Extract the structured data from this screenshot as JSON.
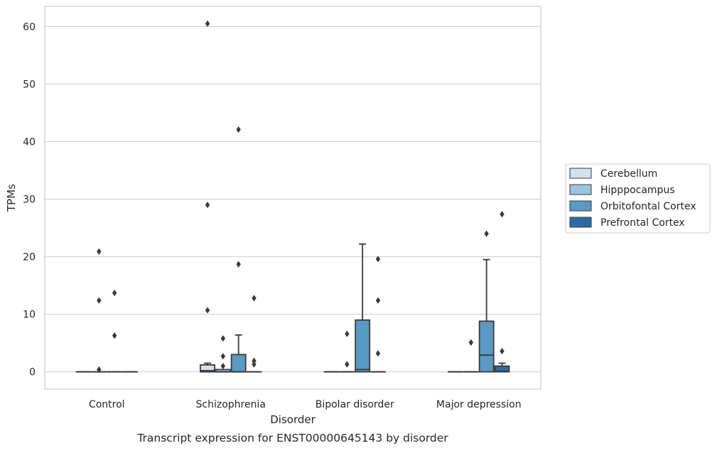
{
  "chart_data": {
    "type": "box",
    "title": "",
    "caption": "Transcript expression for ENST00000645143 by disorder",
    "xlabel": "Disorder",
    "ylabel": "TPMs",
    "ylim": [
      -3,
      63.5
    ],
    "yticks": [
      0,
      10,
      20,
      30,
      40,
      50,
      60
    ],
    "grid": true,
    "legend_position": "right",
    "categories": [
      "Control",
      "Schizophrenia",
      "Bipolar disorder",
      "Major depression"
    ],
    "series": [
      {
        "name": "Cerebellum",
        "color": "#d4e2ef",
        "boxes": [
          {
            "category": "Control",
            "min": 0,
            "q1": 0,
            "median": 0,
            "q3": 0,
            "max": 0,
            "outliers": []
          },
          {
            "category": "Schizophrenia",
            "min": 0,
            "q1": 0,
            "median": 0.2,
            "q3": 1.2,
            "max": 1.5,
            "outliers": [
              10.7,
              29,
              60.5
            ]
          },
          {
            "category": "Bipolar disorder",
            "min": 0,
            "q1": 0,
            "median": 0,
            "q3": 0,
            "max": 0,
            "outliers": []
          },
          {
            "category": "Major depression",
            "min": 0,
            "q1": 0,
            "median": 0,
            "q3": 0,
            "max": 0,
            "outliers": []
          }
        ]
      },
      {
        "name": "Hipppocampus",
        "color": "#9cc3df",
        "boxes": [
          {
            "category": "Control",
            "min": 0,
            "q1": 0,
            "median": 0,
            "q3": 0,
            "max": 0,
            "outliers": [
              0.4,
              12.4,
              20.9
            ]
          },
          {
            "category": "Schizophrenia",
            "min": 0,
            "q1": 0,
            "median": 0,
            "q3": 0.4,
            "max": 0.4,
            "outliers": [
              1.0,
              2.7,
              5.8
            ]
          },
          {
            "category": "Bipolar disorder",
            "min": 0,
            "q1": 0,
            "median": 0,
            "q3": 0,
            "max": 0,
            "outliers": [
              1.3,
              6.6
            ]
          },
          {
            "category": "Major depression",
            "min": 0,
            "q1": 0,
            "median": 0,
            "q3": 0,
            "max": 0,
            "outliers": [
              5.1
            ]
          }
        ]
      },
      {
        "name": "Orbitofontal Cortex",
        "color": "#5a9ac4",
        "boxes": [
          {
            "category": "Control",
            "min": 0,
            "q1": 0,
            "median": 0,
            "q3": 0,
            "max": 0,
            "outliers": [
              6.3,
              13.7
            ]
          },
          {
            "category": "Schizophrenia",
            "min": 0,
            "q1": 0,
            "median": 0,
            "q3": 3.0,
            "max": 6.4,
            "outliers": [
              18.7,
              42.1
            ]
          },
          {
            "category": "Bipolar disorder",
            "min": 0,
            "q1": 0,
            "median": 0.4,
            "q3": 9.0,
            "max": 22.2,
            "outliers": []
          },
          {
            "category": "Major depression",
            "min": 0,
            "q1": 0,
            "median": 2.9,
            "q3": 8.8,
            "max": 19.5,
            "outliers": [
              24.0
            ]
          }
        ]
      },
      {
        "name": "Prefrontal Cortex",
        "color": "#2c6aa6",
        "boxes": [
          {
            "category": "Control",
            "min": 0,
            "q1": 0,
            "median": 0,
            "q3": 0,
            "max": 0,
            "outliers": []
          },
          {
            "category": "Schizophrenia",
            "min": 0,
            "q1": 0,
            "median": 0,
            "q3": 0,
            "max": 0,
            "outliers": [
              1.3,
              1.9,
              12.8
            ]
          },
          {
            "category": "Bipolar disorder",
            "min": 0,
            "q1": 0,
            "median": 0,
            "q3": 0,
            "max": 0,
            "outliers": [
              3.2,
              12.4,
              19.6
            ]
          },
          {
            "category": "Major depression",
            "min": 0,
            "q1": 0,
            "median": 0.1,
            "q3": 1.0,
            "max": 1.5,
            "outliers": [
              3.6,
              27.4
            ]
          }
        ]
      }
    ]
  }
}
